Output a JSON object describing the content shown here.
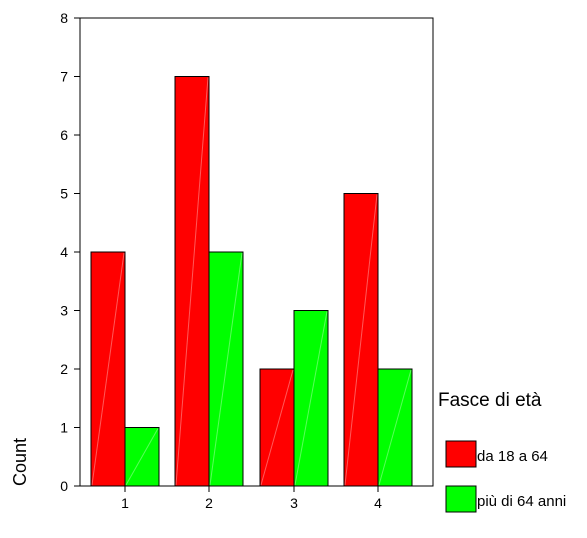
{
  "chart_data": {
    "type": "bar",
    "categories": [
      "1",
      "2",
      "3",
      "4"
    ],
    "series": [
      {
        "name": "da 18 a 64",
        "values": [
          4,
          7,
          2,
          5
        ],
        "color": "#ff0000"
      },
      {
        "name": "più di 64 anni",
        "values": [
          1,
          4,
          3,
          2
        ],
        "color": "#00ff00"
      }
    ],
    "ylabel": "Count",
    "xlabel": "",
    "ylim": [
      0,
      8
    ],
    "yticks": [
      "0",
      "1",
      "2",
      "3",
      "4",
      "5",
      "6",
      "7",
      "8"
    ],
    "legend": {
      "title": "Fasce di età",
      "placement": "right"
    },
    "grid": false
  }
}
